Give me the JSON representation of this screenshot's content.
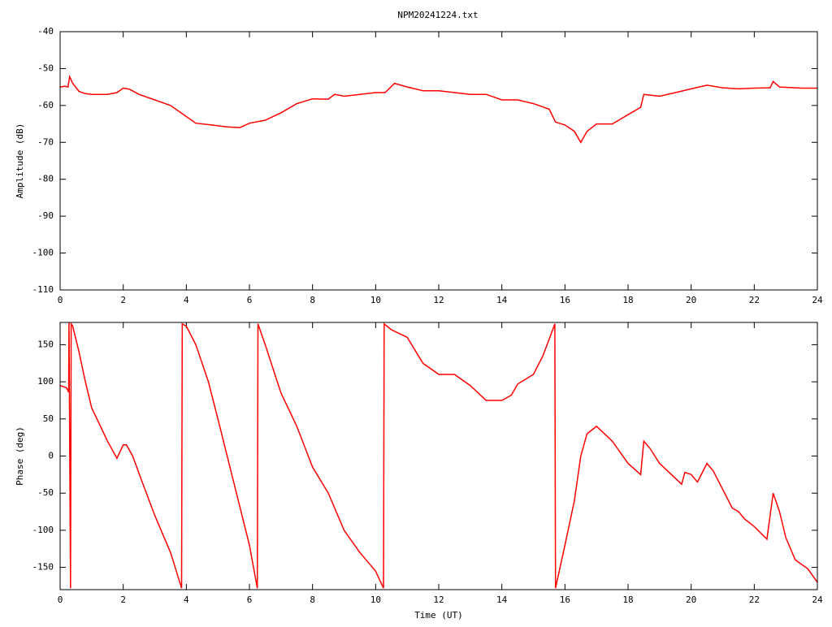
{
  "chart_data": [
    {
      "type": "line",
      "title": "NPM20241224.txt",
      "ylabel": "Amplitude (dB)",
      "color": "#ff0000",
      "xlim": [
        0,
        24
      ],
      "xticks": [
        0,
        2,
        4,
        6,
        8,
        10,
        12,
        14,
        16,
        18,
        20,
        22,
        24
      ],
      "ylim": [
        -110,
        -40
      ],
      "yticks": [
        -110,
        -100,
        -90,
        -80,
        -70,
        -60,
        -50,
        -40
      ],
      "x": [
        0,
        0.15,
        0.25,
        0.3,
        0.4,
        0.6,
        0.8,
        1.0,
        1.5,
        1.8,
        2.0,
        2.2,
        2.5,
        3.0,
        3.5,
        4.0,
        4.3,
        4.8,
        5.3,
        5.7,
        6.0,
        6.5,
        7.0,
        7.5,
        8.0,
        8.5,
        8.7,
        9.0,
        9.5,
        10.0,
        10.3,
        10.6,
        11.0,
        11.5,
        12.0,
        12.5,
        13.0,
        13.5,
        14.0,
        14.5,
        15.0,
        15.5,
        15.7,
        16.0,
        16.3,
        16.5,
        16.7,
        17.0,
        17.5,
        18.0,
        18.4,
        18.5,
        19.0,
        19.5,
        20.0,
        20.5,
        21.0,
        21.5,
        22.0,
        22.5,
        22.6,
        22.8,
        23.5,
        24
      ],
      "values": [
        -55,
        -54.8,
        -55,
        -52.2,
        -54,
        -56.2,
        -56.8,
        -57,
        -57,
        -56.5,
        -55.3,
        -55.6,
        -57,
        -58.5,
        -60,
        -63,
        -64.8,
        -65.3,
        -65.8,
        -66,
        -64.8,
        -64,
        -62,
        -59.5,
        -58.2,
        -58.3,
        -57,
        -57.5,
        -57,
        -56.5,
        -56.5,
        -54,
        -55,
        -56,
        -56,
        -56.5,
        -57,
        -57,
        -58.5,
        -58.5,
        -59.5,
        -61,
        -64.5,
        -65.3,
        -67,
        -70,
        -67,
        -65,
        -65,
        -62.5,
        -60.5,
        -57,
        -57.5,
        -56.5,
        -55.5,
        -54.5,
        -55.2,
        -55.5,
        -55.3,
        -55.2,
        -53.5,
        -55,
        -55.3,
        -55.3
      ]
    },
    {
      "type": "line",
      "xlabel": "Time (UT)",
      "ylabel": "Phase (deg)",
      "color": "#ff0000",
      "xlim": [
        0,
        24
      ],
      "xticks": [
        0,
        2,
        4,
        6,
        8,
        10,
        12,
        14,
        16,
        18,
        20,
        22,
        24
      ],
      "ylim": [
        -180,
        180
      ],
      "yticks": [
        -150,
        -100,
        -50,
        0,
        50,
        100,
        150
      ],
      "x": [
        0,
        0.2,
        0.27,
        0.28,
        0.33,
        0.35,
        0.4,
        0.6,
        0.8,
        1.0,
        1.5,
        1.8,
        2.0,
        2.1,
        2.3,
        2.6,
        3.0,
        3.5,
        3.85,
        3.87,
        4.0,
        4.3,
        4.7,
        5.0,
        5.5,
        6.0,
        6.25,
        6.27,
        6.5,
        7.0,
        7.5,
        8.0,
        8.5,
        9.0,
        9.5,
        10.0,
        10.25,
        10.27,
        10.5,
        11.0,
        11.5,
        12.0,
        12.5,
        13.0,
        13.5,
        14.0,
        14.3,
        14.5,
        15.0,
        15.3,
        15.68,
        15.7,
        16.0,
        16.3,
        16.5,
        16.7,
        17.0,
        17.5,
        18.0,
        18.4,
        18.5,
        18.7,
        19.0,
        19.5,
        19.7,
        19.8,
        20.0,
        20.2,
        20.5,
        20.7,
        21.0,
        21.3,
        21.5,
        21.7,
        22.0,
        22.4,
        22.6,
        22.8,
        23.0,
        23.3,
        23.7,
        24
      ],
      "values": [
        95,
        92,
        86,
        180,
        -178,
        178,
        175,
        140,
        100,
        65,
        20,
        -3,
        15,
        15,
        0,
        -35,
        -80,
        -130,
        -178,
        178,
        175,
        150,
        100,
        50,
        -35,
        -120,
        -178,
        178,
        150,
        85,
        40,
        -15,
        -50,
        -100,
        -130,
        -155,
        -178,
        178,
        170,
        160,
        125,
        110,
        110,
        95,
        75,
        75,
        82,
        97,
        110,
        135,
        178,
        -178,
        -120,
        -60,
        0,
        30,
        40,
        20,
        -10,
        -25,
        20,
        10,
        -10,
        -30,
        -38,
        -22,
        -25,
        -35,
        -10,
        -20,
        -45,
        -70,
        -75,
        -85,
        -95,
        -112,
        -50,
        -75,
        -110,
        -140,
        -152,
        -170
      ]
    }
  ]
}
